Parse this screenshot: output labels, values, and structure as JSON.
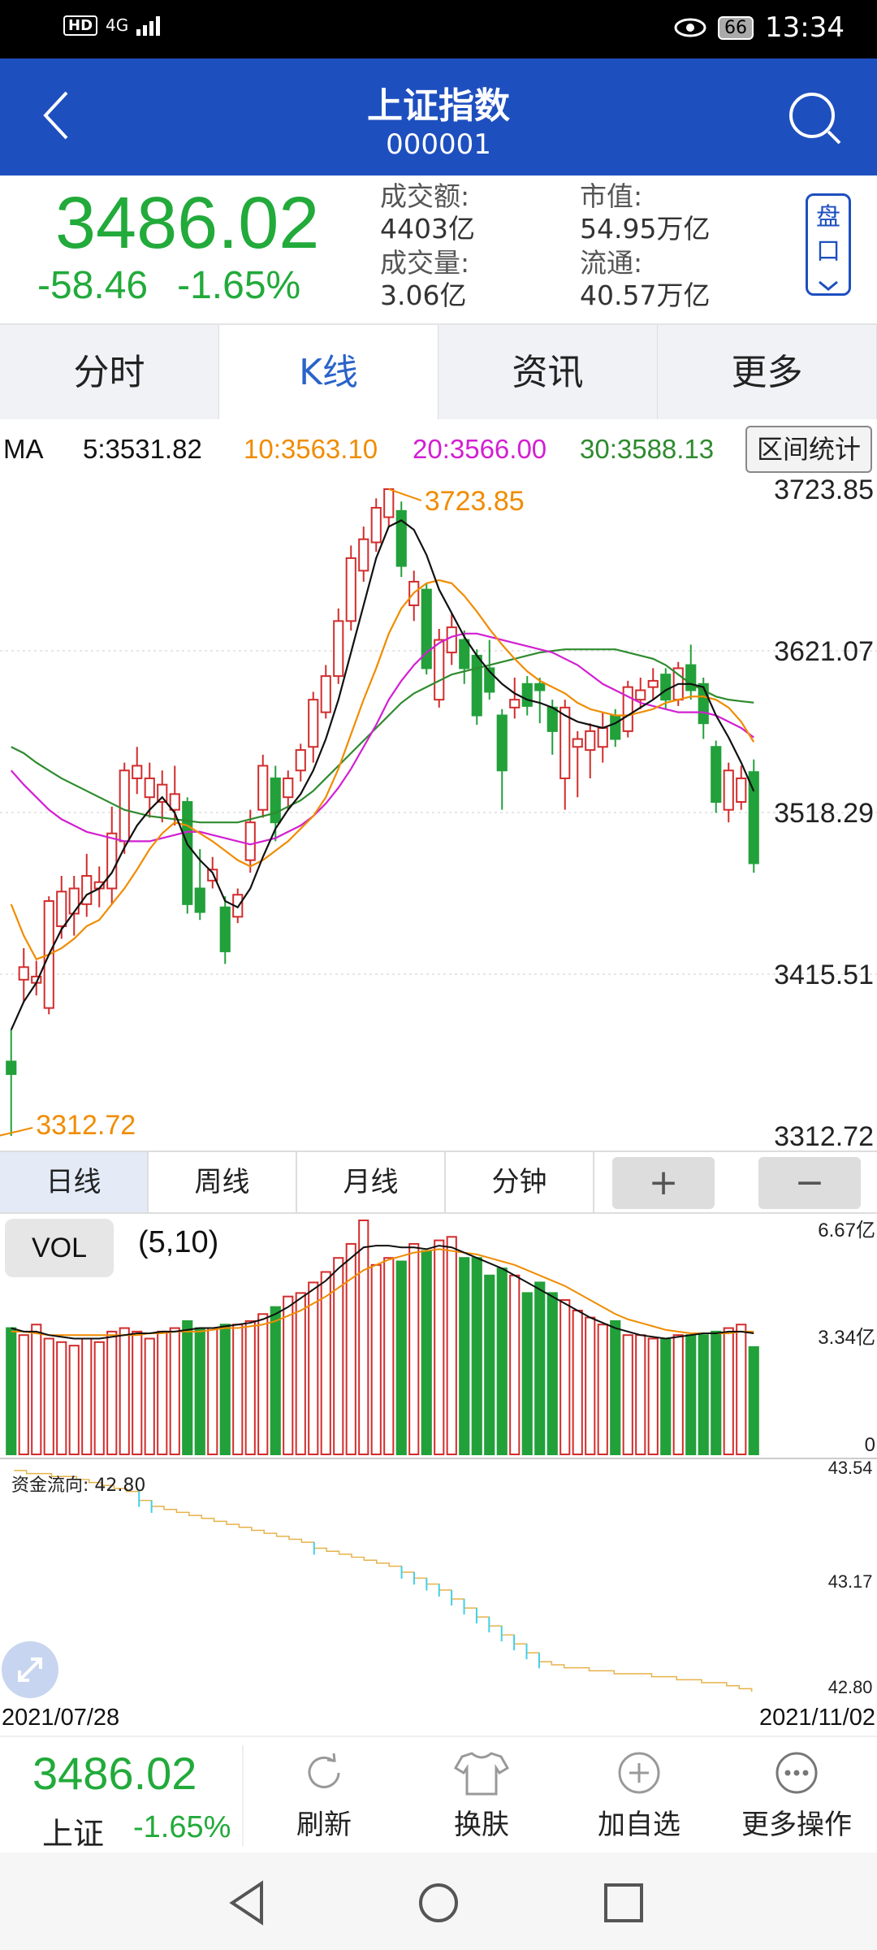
{
  "status_bar": {
    "network": "4G",
    "hd": "HD",
    "battery": "66",
    "time": "13:34"
  },
  "header": {
    "title": "上证指数",
    "code": "000001"
  },
  "quote": {
    "price": "3486.02",
    "change": "-58.46",
    "change_pct": "-1.65%",
    "turnover_label": "成交额:",
    "turnover_value": "4403亿",
    "volume_label": "成交量:",
    "volume_value": "3.06亿",
    "market_cap_label": "市值:",
    "market_cap_value": "54.95万亿",
    "float_label": "流通:",
    "float_value": "40.57万亿",
    "pankou_label": "盘口"
  },
  "tabs": [
    {
      "label": "分时",
      "active": false
    },
    {
      "label": "K线",
      "active": true
    },
    {
      "label": "资讯",
      "active": false
    },
    {
      "label": "更多",
      "active": false
    }
  ],
  "ma": {
    "label": "MA",
    "ma5": "5:3531.82",
    "ma10": "10:3563.10",
    "ma20": "20:3566.00",
    "ma30": "30:3588.13",
    "interval_button": "区间统计",
    "colors": {
      "ma5": "#111111",
      "ma10": "#f08c00",
      "ma20": "#d21fd2",
      "ma30": "#2e8b2e"
    }
  },
  "chart_data": [
    {
      "type": "candlestick",
      "title": "",
      "y_ticks": [
        "3723.85",
        "3621.07",
        "3518.29",
        "3415.51",
        "3312.72"
      ],
      "ylim": [
        3312.72,
        3723.85
      ],
      "high_label": "3723.85",
      "low_label": "3312.72",
      "up_color": "#d22c2c",
      "down_color": "#22a03a",
      "candles": [
        {
          "o": 3360,
          "c": 3352,
          "h": 3380,
          "l": 3312.7
        },
        {
          "o": 3412,
          "c": 3420,
          "h": 3432,
          "l": 3398
        },
        {
          "o": 3410,
          "c": 3414,
          "h": 3424,
          "l": 3402
        },
        {
          "o": 3394,
          "c": 3462,
          "h": 3465,
          "l": 3390
        },
        {
          "o": 3446,
          "c": 3468,
          "h": 3478,
          "l": 3438
        },
        {
          "o": 3454,
          "c": 3470,
          "h": 3478,
          "l": 3440
        },
        {
          "o": 3460,
          "c": 3478,
          "h": 3492,
          "l": 3452
        },
        {
          "o": 3470,
          "c": 3474,
          "h": 3484,
          "l": 3458
        },
        {
          "o": 3470,
          "c": 3505,
          "h": 3522,
          "l": 3460
        },
        {
          "o": 3500,
          "c": 3545,
          "h": 3550,
          "l": 3492
        },
        {
          "o": 3540,
          "c": 3548,
          "h": 3560,
          "l": 3530
        },
        {
          "o": 3528,
          "c": 3540,
          "h": 3550,
          "l": 3515
        },
        {
          "o": 3525,
          "c": 3536,
          "h": 3545,
          "l": 3512
        },
        {
          "o": 3520,
          "c": 3530,
          "h": 3548,
          "l": 3510
        },
        {
          "o": 3525,
          "c": 3460,
          "h": 3528,
          "l": 3454
        },
        {
          "o": 3470,
          "c": 3455,
          "h": 3495,
          "l": 3450
        },
        {
          "o": 3475,
          "c": 3482,
          "h": 3490,
          "l": 3470
        },
        {
          "o": 3458,
          "c": 3430,
          "h": 3465,
          "l": 3422
        },
        {
          "o": 3452,
          "c": 3466,
          "h": 3470,
          "l": 3448
        },
        {
          "o": 3488,
          "c": 3512,
          "h": 3520,
          "l": 3480
        },
        {
          "o": 3520,
          "c": 3548,
          "h": 3555,
          "l": 3515
        },
        {
          "o": 3540,
          "c": 3512,
          "h": 3548,
          "l": 3500
        },
        {
          "o": 3528,
          "c": 3540,
          "h": 3545,
          "l": 3520
        },
        {
          "o": 3545,
          "c": 3558,
          "h": 3562,
          "l": 3538
        },
        {
          "o": 3560,
          "c": 3590,
          "h": 3595,
          "l": 3550
        },
        {
          "o": 3582,
          "c": 3605,
          "h": 3612,
          "l": 3578
        },
        {
          "o": 3605,
          "c": 3640,
          "h": 3648,
          "l": 3600
        },
        {
          "o": 3640,
          "c": 3680,
          "h": 3688,
          "l": 3634
        },
        {
          "o": 3672,
          "c": 3692,
          "h": 3700,
          "l": 3665
        },
        {
          "o": 3690,
          "c": 3712,
          "h": 3718,
          "l": 3684
        },
        {
          "o": 3706,
          "c": 3723.85,
          "h": 3723.85,
          "l": 3700
        },
        {
          "o": 3710,
          "c": 3675,
          "h": 3716,
          "l": 3668
        },
        {
          "o": 3650,
          "c": 3665,
          "h": 3672,
          "l": 3640
        },
        {
          "o": 3660,
          "c": 3610,
          "h": 3664,
          "l": 3606
        },
        {
          "o": 3590,
          "c": 3628,
          "h": 3635,
          "l": 3585
        },
        {
          "o": 3620,
          "c": 3636,
          "h": 3645,
          "l": 3612
        },
        {
          "o": 3628,
          "c": 3610,
          "h": 3634,
          "l": 3600
        },
        {
          "o": 3618,
          "c": 3580,
          "h": 3622,
          "l": 3574
        },
        {
          "o": 3610,
          "c": 3595,
          "h": 3628,
          "l": 3590
        },
        {
          "o": 3580,
          "c": 3545,
          "h": 3584,
          "l": 3520
        },
        {
          "o": 3585,
          "c": 3590,
          "h": 3604,
          "l": 3578
        },
        {
          "o": 3600,
          "c": 3586,
          "h": 3605,
          "l": 3580
        },
        {
          "o": 3600,
          "c": 3596,
          "h": 3604,
          "l": 3575
        },
        {
          "o": 3585,
          "c": 3570,
          "h": 3590,
          "l": 3555
        },
        {
          "o": 3540,
          "c": 3585,
          "h": 3590,
          "l": 3520
        },
        {
          "o": 3560,
          "c": 3565,
          "h": 3570,
          "l": 3528
        },
        {
          "o": 3558,
          "c": 3570,
          "h": 3575,
          "l": 3540
        },
        {
          "o": 3560,
          "c": 3572,
          "h": 3582,
          "l": 3550
        },
        {
          "o": 3580,
          "c": 3565,
          "h": 3584,
          "l": 3560
        },
        {
          "o": 3570,
          "c": 3598,
          "h": 3602,
          "l": 3566
        },
        {
          "o": 3590,
          "c": 3596,
          "h": 3604,
          "l": 3584
        },
        {
          "o": 3598,
          "c": 3602,
          "h": 3610,
          "l": 3590
        },
        {
          "o": 3606,
          "c": 3590,
          "h": 3610,
          "l": 3584
        },
        {
          "o": 3590,
          "c": 3610,
          "h": 3614,
          "l": 3586
        },
        {
          "o": 3612,
          "c": 3596,
          "h": 3625,
          "l": 3590
        },
        {
          "o": 3600,
          "c": 3575,
          "h": 3604,
          "l": 3565
        },
        {
          "o": 3560,
          "c": 3525,
          "h": 3564,
          "l": 3518
        },
        {
          "o": 3520,
          "c": 3545,
          "h": 3550,
          "l": 3512
        },
        {
          "o": 3525,
          "c": 3540,
          "h": 3548,
          "l": 3520
        },
        {
          "o": 3544,
          "c": 3486.02,
          "h": 3552,
          "l": 3480
        }
      ],
      "ma5": [
        3380,
        3398,
        3410,
        3428,
        3444,
        3455,
        3466,
        3470,
        3480,
        3496,
        3510,
        3520,
        3528,
        3518,
        3498,
        3488,
        3480,
        3462,
        3458,
        3470,
        3490,
        3508,
        3520,
        3530,
        3545,
        3565,
        3590,
        3620,
        3650,
        3680,
        3700,
        3704,
        3698,
        3682,
        3660,
        3645,
        3630,
        3618,
        3608,
        3600,
        3594,
        3590,
        3588,
        3585,
        3580,
        3576,
        3574,
        3572,
        3575,
        3580,
        3585,
        3590,
        3596,
        3600,
        3600,
        3598,
        3580,
        3566,
        3550,
        3531.82
      ],
      "ma10": [
        3460,
        3440,
        3425,
        3428,
        3432,
        3438,
        3446,
        3450,
        3460,
        3470,
        3482,
        3495,
        3505,
        3512,
        3510,
        3505,
        3500,
        3494,
        3488,
        3484,
        3488,
        3494,
        3500,
        3508,
        3516,
        3528,
        3546,
        3568,
        3590,
        3610,
        3632,
        3648,
        3658,
        3664,
        3666,
        3664,
        3656,
        3646,
        3635,
        3625,
        3616,
        3608,
        3602,
        3598,
        3594,
        3588,
        3584,
        3582,
        3580,
        3580,
        3582,
        3584,
        3588,
        3590,
        3592,
        3592,
        3590,
        3585,
        3576,
        3563.1
      ],
      "ma20": [
        3545,
        3536,
        3528,
        3520,
        3514,
        3510,
        3506,
        3504,
        3502,
        3500,
        3500,
        3500,
        3502,
        3504,
        3506,
        3506,
        3504,
        3502,
        3500,
        3498,
        3500,
        3502,
        3506,
        3510,
        3516,
        3524,
        3534,
        3546,
        3560,
        3574,
        3590,
        3602,
        3612,
        3620,
        3626,
        3630,
        3632,
        3632,
        3630,
        3628,
        3626,
        3624,
        3622,
        3620,
        3616,
        3612,
        3606,
        3600,
        3596,
        3592,
        3588,
        3586,
        3584,
        3582,
        3582,
        3582,
        3580,
        3576,
        3572,
        3566.0
      ],
      "ma30": [
        3560,
        3556,
        3550,
        3545,
        3540,
        3536,
        3532,
        3528,
        3524,
        3520,
        3518,
        3516,
        3515,
        3514,
        3513,
        3512,
        3512,
        3512,
        3512,
        3514,
        3516,
        3518,
        3522,
        3526,
        3532,
        3540,
        3548,
        3556,
        3564,
        3572,
        3580,
        3588,
        3594,
        3598,
        3602,
        3606,
        3608,
        3610,
        3612,
        3614,
        3616,
        3618,
        3620,
        3621,
        3622,
        3622,
        3622,
        3622,
        3622,
        3620,
        3618,
        3616,
        3612,
        3606,
        3600,
        3596,
        3592,
        3590,
        3589,
        3588.13
      ]
    },
    {
      "type": "bar",
      "title": "VOL",
      "y_ticks": [
        "6.67亿",
        "3.34亿",
        "0"
      ],
      "ylim": [
        0,
        6.67
      ],
      "values": [
        3.6,
        3.4,
        3.7,
        3.3,
        3.2,
        3.1,
        3.3,
        3.2,
        3.5,
        3.6,
        3.5,
        3.3,
        3.5,
        3.6,
        3.8,
        3.6,
        3.6,
        3.7,
        3.7,
        3.8,
        4.0,
        4.2,
        4.5,
        4.6,
        4.9,
        5.2,
        5.6,
        6.0,
        6.67,
        5.4,
        5.6,
        5.5,
        6.0,
        5.8,
        6.1,
        6.2,
        5.6,
        5.6,
        5.1,
        5.3,
        5.1,
        4.6,
        4.9,
        4.6,
        4.4,
        4.1,
        3.9,
        3.7,
        3.8,
        3.4,
        3.4,
        3.3,
        3.3,
        3.4,
        3.4,
        3.4,
        3.5,
        3.6,
        3.7,
        3.06
      ],
      "ma5": [
        3.6,
        3.5,
        3.5,
        3.4,
        3.35,
        3.3,
        3.3,
        3.3,
        3.35,
        3.4,
        3.45,
        3.45,
        3.5,
        3.5,
        3.55,
        3.6,
        3.6,
        3.65,
        3.7,
        3.75,
        3.85,
        4.0,
        4.2,
        4.45,
        4.7,
        4.95,
        5.3,
        5.6,
        5.9,
        5.95,
        5.95,
        5.9,
        5.9,
        5.85,
        5.95,
        5.9,
        5.75,
        5.6,
        5.45,
        5.3,
        5.1,
        4.9,
        4.7,
        4.5,
        4.3,
        4.1,
        3.9,
        3.75,
        3.6,
        3.5,
        3.4,
        3.35,
        3.3,
        3.35,
        3.4,
        3.45,
        3.45,
        3.5,
        3.5,
        3.45
      ],
      "ma10": [
        3.5,
        3.5,
        3.45,
        3.4,
        3.4,
        3.4,
        3.4,
        3.4,
        3.4,
        3.4,
        3.4,
        3.45,
        3.45,
        3.5,
        3.5,
        3.5,
        3.55,
        3.6,
        3.6,
        3.65,
        3.7,
        3.8,
        3.95,
        4.1,
        4.3,
        4.5,
        4.75,
        5.0,
        5.25,
        5.4,
        5.55,
        5.65,
        5.75,
        5.8,
        5.85,
        5.8,
        5.75,
        5.7,
        5.6,
        5.5,
        5.4,
        5.25,
        5.1,
        4.95,
        4.8,
        4.6,
        4.4,
        4.2,
        4.0,
        3.85,
        3.75,
        3.65,
        3.55,
        3.5,
        3.45,
        3.45,
        3.45,
        3.45,
        3.5,
        3.5
      ]
    },
    {
      "type": "line",
      "title": "资金流向",
      "label": "资金流向: 42.80",
      "y_ticks": [
        "43.54",
        "43.17",
        "42.80"
      ],
      "ylim": [
        42.8,
        43.54
      ],
      "values": [
        43.54,
        43.53,
        43.53,
        43.52,
        43.52,
        43.51,
        43.5,
        43.49,
        43.48,
        43.47,
        43.44,
        43.42,
        43.41,
        43.4,
        43.39,
        43.38,
        43.37,
        43.36,
        43.35,
        43.34,
        43.33,
        43.32,
        43.31,
        43.3,
        43.28,
        43.27,
        43.26,
        43.25,
        43.24,
        43.23,
        43.22,
        43.2,
        43.18,
        43.16,
        43.14,
        43.11,
        43.08,
        43.05,
        43.02,
        42.99,
        42.96,
        42.93,
        42.9,
        42.89,
        42.88,
        42.88,
        42.87,
        42.87,
        42.86,
        42.86,
        42.86,
        42.85,
        42.85,
        42.84,
        42.84,
        42.83,
        42.83,
        42.82,
        42.81,
        42.8
      ]
    }
  ],
  "period_tabs": {
    "day": "日线",
    "week": "周线",
    "month": "月线",
    "minute": "分钟",
    "plus": "+",
    "minus": "−"
  },
  "vol": {
    "label": "VOL",
    "params": "(5,10)"
  },
  "dates": {
    "start": "2021/07/28",
    "end": "2021/11/02"
  },
  "bottom": {
    "price": "3486.02",
    "name": "上证",
    "pct": "-1.65%",
    "actions": [
      {
        "label": "刷新",
        "icon": "refresh-icon"
      },
      {
        "label": "换肤",
        "icon": "shirt-icon"
      },
      {
        "label": "加自选",
        "icon": "add-circle-icon"
      },
      {
        "label": "更多操作",
        "icon": "more-icon"
      }
    ]
  }
}
